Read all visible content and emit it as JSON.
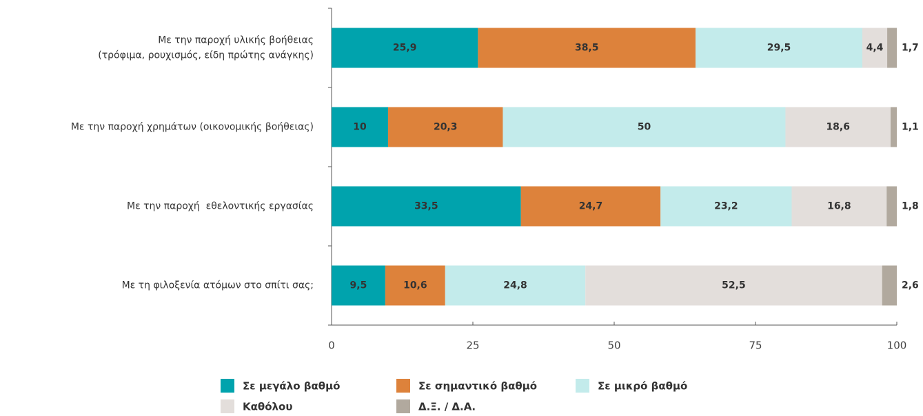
{
  "chart_data": {
    "type": "stacked-barh",
    "categories": [
      "Με την παροχή υλικής βοήθειας\n(τρόφιμα, ρουχισμός, είδη πρώτης ανάγκης)",
      "Με την παροχή χρημάτων (οικονομικής βοήθειας)",
      "Με την παροχή  εθελοντικής εργασίας",
      "Με τη φιλοξενία ατόμων στο σπίτι σας;"
    ],
    "series": [
      {
        "name": "Σε μεγάλο βαθμό",
        "color": "#00a3ad",
        "values": [
          25.9,
          10,
          33.5,
          9.5
        ],
        "value_labels": [
          "25,9",
          "10",
          "33,5",
          "9,5"
        ]
      },
      {
        "name": "Σε σημαντικό βαθμό",
        "color": "#dd823b",
        "values": [
          38.5,
          20.3,
          24.7,
          10.6
        ],
        "value_labels": [
          "38,5",
          "20,3",
          "24,7",
          "10,6"
        ]
      },
      {
        "name": "Σε μικρό βαθμό",
        "color": "#c3ebeb",
        "values": [
          29.5,
          50,
          23.2,
          24.8
        ],
        "value_labels": [
          "29,5",
          "50",
          "23,2",
          "24,8"
        ]
      },
      {
        "name": "Καθόλου",
        "color": "#e3dedb",
        "values": [
          4.4,
          18.6,
          16.8,
          52.5
        ],
        "value_labels": [
          "4,4",
          "18,6",
          "16,8",
          "52,5"
        ]
      },
      {
        "name": "Δ.Ξ. / Δ.Α.",
        "color": "#b1a99e",
        "values": [
          1.7,
          1.1,
          1.8,
          2.6
        ],
        "value_labels": [
          "1,7",
          "1,1",
          "1,8",
          "2,6"
        ]
      }
    ],
    "xlim": [
      0,
      100
    ],
    "xticks": [
      0,
      25,
      50,
      75,
      100
    ]
  }
}
